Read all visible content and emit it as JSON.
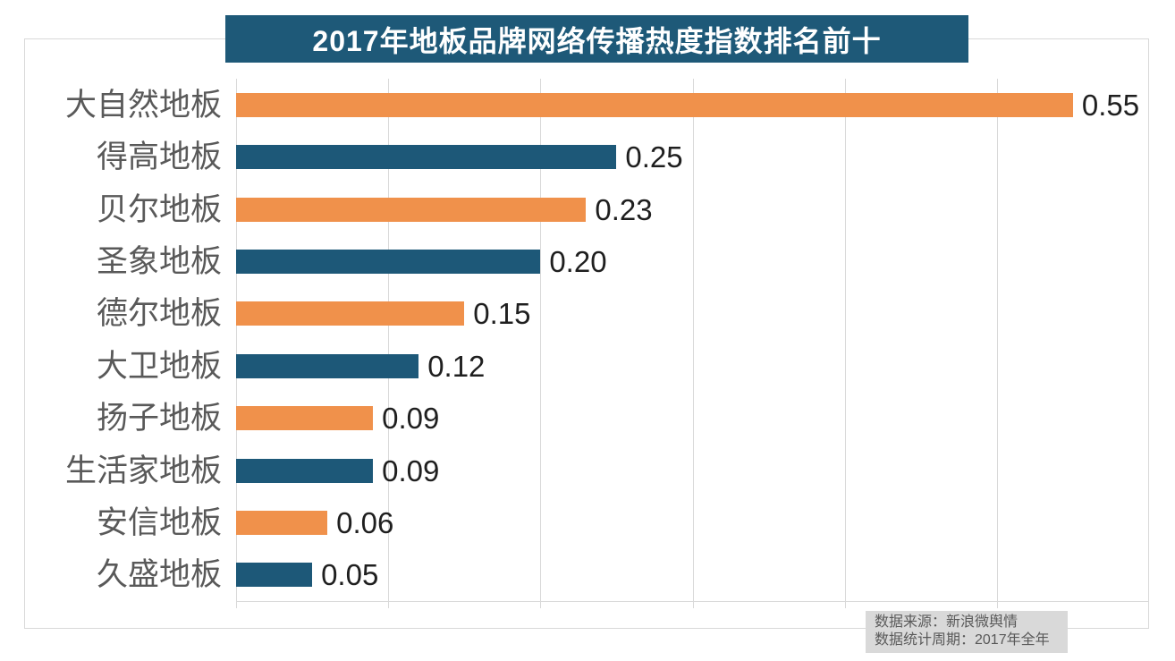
{
  "title": "2017年地板品牌网络传播热度指数排名前十",
  "footer": {
    "line1": "数据来源：新浪微舆情",
    "line2": "数据统计周期：2017年全年"
  },
  "colors": {
    "banner_bg": "#1e5978",
    "bar_orange": "#f0914b",
    "bar_teal": "#1d5878",
    "gridline": "#d9d9d9",
    "category_label": "#595959",
    "value_label": "#1f1f1f",
    "footer_bg": "#d9d9d9",
    "footer_text": "#595959"
  },
  "chart_data": {
    "type": "bar",
    "orientation": "horizontal",
    "title": "2017年地板品牌网络传播热度指数排名前十",
    "categories": [
      "大自然地板",
      "得高地板",
      "贝尔地板",
      "圣象地板",
      "德尔地板",
      "大卫地板",
      "扬子地板",
      "生活家地板",
      "安信地板",
      "久盛地板"
    ],
    "values": [
      0.55,
      0.25,
      0.23,
      0.2,
      0.15,
      0.12,
      0.09,
      0.09,
      0.06,
      0.05
    ],
    "value_labels": [
      "0.55",
      "0.25",
      "0.23",
      "0.20",
      "0.15",
      "0.12",
      "0.09",
      "0.09",
      "0.06",
      "0.05"
    ],
    "bar_color_pattern": [
      "#f0914b",
      "#1d5878"
    ],
    "xlabel": "",
    "ylabel": "",
    "xlim": [
      0,
      0.6
    ],
    "grid_step": 0.1,
    "grid": true,
    "legend": false,
    "source_notes": [
      "数据来源：新浪微舆情",
      "数据统计周期：2017年全年"
    ]
  }
}
